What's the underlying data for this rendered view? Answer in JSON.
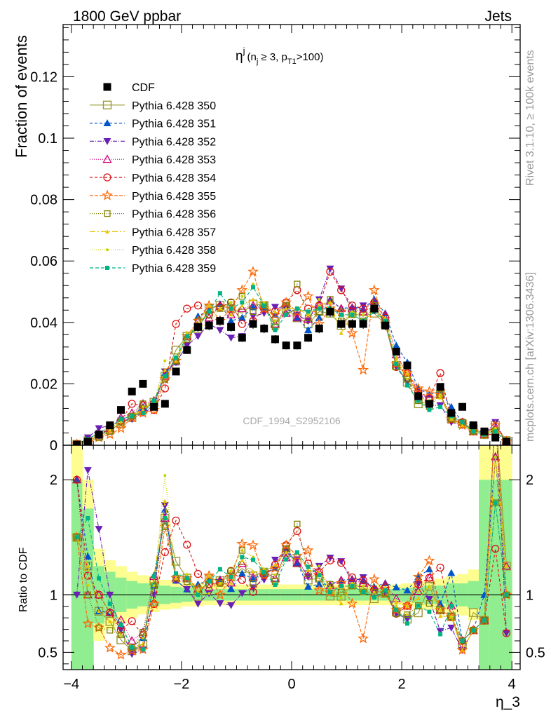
{
  "header": {
    "left": "1800 GeV ppbar",
    "right": "Jets"
  },
  "side_labels": {
    "rivet": "Rivet 3.1.10, ≥ 100k events",
    "mcplots": "mcplots.cern.ch [arXiv:1306.3436]"
  },
  "watermark": "CDF_1994_S2952106",
  "colors": {
    "data": "#000000",
    "band_inner": "#90ee90",
    "band_outer": "#fefe90",
    "reference_line": "#000000"
  },
  "chart_data": [
    {
      "type": "scatter",
      "title": "",
      "plot_label": {
        "base": "η",
        "sup": "j",
        "cond": "(n",
        "cond_sub": "j",
        "cond_mid": " ≥ 3, p",
        "cond_sub2": "T1",
        "cond_end": ">100)"
      },
      "ylabel": "Fraction of events",
      "xlabel": "",
      "xlim": [
        -4.15,
        4.15
      ],
      "ylim": [
        0,
        0.137
      ],
      "yticks": [
        0,
        0.02,
        0.04,
        0.06,
        0.08,
        0.1,
        0.12
      ],
      "ytick_labels": [
        "0",
        "0.02",
        "0.04",
        "0.06",
        "0.08",
        "0.1",
        "0.12"
      ],
      "legend_position": "top-left",
      "x": [
        -3.9,
        -3.7,
        -3.5,
        -3.3,
        -3.1,
        -2.9,
        -2.7,
        -2.5,
        -2.3,
        -2.1,
        -1.9,
        -1.7,
        -1.5,
        -1.3,
        -1.1,
        -0.9,
        -0.7,
        -0.5,
        -0.3,
        -0.1,
        0.1,
        0.3,
        0.5,
        0.7,
        0.9,
        1.1,
        1.3,
        1.5,
        1.7,
        1.9,
        2.1,
        2.3,
        2.5,
        2.7,
        2.9,
        3.1,
        3.3,
        3.5,
        3.7,
        3.9
      ],
      "data_series": {
        "name": "CDF",
        "values": [
          0.0002,
          0.0012,
          0.0035,
          0.0065,
          0.0115,
          0.0175,
          0.02,
          0.0125,
          0.0135,
          0.024,
          0.031,
          0.0385,
          0.039,
          0.0405,
          0.0385,
          0.035,
          0.0395,
          0.038,
          0.0345,
          0.0325,
          0.0325,
          0.035,
          0.038,
          0.0435,
          0.0395,
          0.0395,
          0.0395,
          0.0445,
          0.039,
          0.0305,
          0.026,
          0.016,
          0.0135,
          0.019,
          0.0105,
          0.0125,
          0.0065,
          0.0045,
          0.0025,
          0.0012
        ]
      },
      "series": [
        {
          "name": "Pythia 6.428 350",
          "color": "#999933",
          "marker": "square-open",
          "dash": "",
          "values": [
            0.0003,
            0.0015,
            0.003,
            0.005,
            0.007,
            0.009,
            0.0115,
            0.014,
            0.0225,
            0.031,
            0.0355,
            0.038,
            0.0445,
            0.0455,
            0.0445,
            0.043,
            0.046,
            0.0455,
            0.0395,
            0.0445,
            0.0415,
            0.0395,
            0.0435,
            0.043,
            0.039,
            0.043,
            0.042,
            0.043,
            0.0395,
            0.026,
            0.0205,
            0.0135,
            0.0145,
            0.0165,
            0.0085,
            0.007,
            0.0055,
            0.0035,
            0.0065,
            0.0015
          ]
        },
        {
          "name": "Pythia 6.428 351",
          "color": "#0055cc",
          "marker": "triangle-up",
          "dash": "4,3",
          "values": [
            0.0004,
            0.0016,
            0.003,
            0.0055,
            0.0085,
            0.0095,
            0.0125,
            0.0135,
            0.0235,
            0.027,
            0.0325,
            0.042,
            0.044,
            0.046,
            0.0405,
            0.0415,
            0.045,
            0.045,
            0.0425,
            0.0455,
            0.0415,
            0.0375,
            0.0415,
            0.0475,
            0.0445,
            0.045,
            0.0445,
            0.0475,
            0.043,
            0.0325,
            0.027,
            0.0185,
            0.0165,
            0.0175,
            0.0125,
            0.0075,
            0.0045,
            0.0045,
            0.0055,
            0.0012
          ]
        },
        {
          "name": "Pythia 6.428 352",
          "color": "#6a1fb5",
          "marker": "triangle-down",
          "dash": "6,2,1,2",
          "values": [
            0.0002,
            0.0025,
            0.0055,
            0.0065,
            0.008,
            0.0085,
            0.0105,
            0.0125,
            0.024,
            0.027,
            0.0325,
            0.0355,
            0.0395,
            0.0375,
            0.035,
            0.0355,
            0.042,
            0.043,
            0.045,
            0.0445,
            0.0425,
            0.0405,
            0.0475,
            0.0575,
            0.051,
            0.044,
            0.0455,
            0.046,
            0.04,
            0.0255,
            0.0205,
            0.0175,
            0.013,
            0.013,
            0.0075,
            0.0065,
            0.0045,
            0.0035,
            0.0075,
            0.0008
          ]
        },
        {
          "name": "Pythia 6.428 353",
          "color": "#cc0077",
          "marker": "triangle-open",
          "dash": "1,2",
          "values": [
            0.0004,
            0.0012,
            0.0035,
            0.0055,
            0.009,
            0.0105,
            0.0135,
            0.0145,
            0.0225,
            0.0275,
            0.0355,
            0.0405,
            0.0415,
            0.0455,
            0.0425,
            0.0445,
            0.0455,
            0.0455,
            0.0395,
            0.043,
            0.0415,
            0.041,
            0.0455,
            0.047,
            0.0445,
            0.0445,
            0.0435,
            0.0455,
            0.0425,
            0.0295,
            0.0235,
            0.0165,
            0.0155,
            0.0165,
            0.0095,
            0.0075,
            0.0045,
            0.0035,
            0.0055,
            0.0015
          ]
        },
        {
          "name": "Pythia 6.428 354",
          "color": "#dd1111",
          "marker": "circle-open",
          "dash": "4,3",
          "values": [
            0.0004,
            0.0014,
            0.0035,
            0.0055,
            0.008,
            0.0135,
            0.013,
            0.0115,
            0.0185,
            0.0395,
            0.0445,
            0.0455,
            0.0425,
            0.045,
            0.0465,
            0.0395,
            0.0405,
            0.0445,
            0.0435,
            0.0465,
            0.0505,
            0.0445,
            0.0455,
            0.0565,
            0.0505,
            0.0455,
            0.0445,
            0.0465,
            0.0415,
            0.0255,
            0.0235,
            0.0175,
            0.0155,
            0.0235,
            0.0085,
            0.0075,
            0.0045,
            0.0035,
            0.0035,
            0.0008
          ]
        },
        {
          "name": "Pythia 6.428 355",
          "color": "#ff6600",
          "marker": "star-open",
          "dash": "5,2",
          "values": [
            0.0003,
            0.0009,
            0.0025,
            0.0035,
            0.0055,
            0.009,
            0.0105,
            0.0115,
            0.0215,
            0.0275,
            0.0355,
            0.0405,
            0.0455,
            0.0405,
            0.0445,
            0.0505,
            0.0565,
            0.0445,
            0.0425,
            0.0465,
            0.0435,
            0.0485,
            0.0395,
            0.0445,
            0.0435,
            0.0365,
            0.0245,
            0.0505,
            0.0395,
            0.0265,
            0.0235,
            0.0185,
            0.0175,
            0.0165,
            0.0085,
            0.0065,
            0.0045,
            0.0035,
            0.0065,
            0.0012
          ]
        },
        {
          "name": "Pythia 6.428 356",
          "color": "#7f7f00",
          "marker": "square-open-small",
          "dash": "1,2",
          "values": [
            0.0003,
            0.0012,
            0.0025,
            0.0045,
            0.0075,
            0.0095,
            0.0135,
            0.0135,
            0.0215,
            0.0275,
            0.0345,
            0.0405,
            0.0425,
            0.0445,
            0.0465,
            0.0485,
            0.0435,
            0.0455,
            0.0385,
            0.0455,
            0.0525,
            0.0415,
            0.0435,
            0.0475,
            0.0405,
            0.0425,
            0.0405,
            0.0455,
            0.0395,
            0.0255,
            0.0215,
            0.0145,
            0.0125,
            0.0165,
            0.0085,
            0.0075,
            0.0045,
            0.0035,
            0.0045,
            0.0012
          ]
        },
        {
          "name": "Pythia 6.428 357",
          "color": "#e6c200",
          "marker": "tri-small",
          "dash": "8,3,2,3",
          "values": [
            0.0003,
            0.0015,
            0.003,
            0.005,
            0.0085,
            0.0095,
            0.0115,
            0.0145,
            0.0245,
            0.0275,
            0.0355,
            0.0395,
            0.0455,
            0.0445,
            0.0425,
            0.0455,
            0.0475,
            0.0455,
            0.0435,
            0.0445,
            0.0445,
            0.0425,
            0.0455,
            0.0465,
            0.0365,
            0.0425,
            0.0405,
            0.0435,
            0.0415,
            0.0285,
            0.0235,
            0.0155,
            0.0145,
            0.0155,
            0.0085,
            0.0065,
            0.0045,
            0.0035,
            0.0055,
            0.0015
          ]
        },
        {
          "name": "Pythia 6.428 358",
          "color": "#c8d400",
          "marker": "dot-small",
          "dash": "1,2",
          "values": [
            0.0003,
            0.0013,
            0.0035,
            0.0055,
            0.0075,
            0.0095,
            0.0125,
            0.0135,
            0.0275,
            0.0285,
            0.0365,
            0.0385,
            0.0395,
            0.0445,
            0.0465,
            0.0485,
            0.0525,
            0.0465,
            0.0405,
            0.0425,
            0.0445,
            0.0435,
            0.0475,
            0.0445,
            0.0385,
            0.0435,
            0.0425,
            0.0455,
            0.0405,
            0.0275,
            0.0215,
            0.0165,
            0.0145,
            0.0165,
            0.0085,
            0.0075,
            0.0045,
            0.0035,
            0.0055,
            0.0012
          ]
        },
        {
          "name": "Pythia 6.428 359",
          "color": "#00b386",
          "marker": "square-small",
          "dash": "5,3",
          "values": [
            0.0003,
            0.002,
            0.004,
            0.006,
            0.0085,
            0.0095,
            0.0105,
            0.0145,
            0.0225,
            0.0285,
            0.0355,
            0.0385,
            0.0435,
            0.0495,
            0.0445,
            0.0465,
            0.0515,
            0.0455,
            0.0375,
            0.0425,
            0.0445,
            0.0435,
            0.0445,
            0.0445,
            0.0425,
            0.0425,
            0.0405,
            0.0435,
            0.0405,
            0.0265,
            0.0195,
            0.0145,
            0.0115,
            0.0125,
            0.0095,
            0.0075,
            0.0045,
            0.0035,
            0.0045,
            0.0012
          ]
        }
      ]
    },
    {
      "type": "line",
      "title": "",
      "ylabel": "Ratio to CDF",
      "xlabel": "η_3",
      "xlim": [
        -4.15,
        4.15
      ],
      "ylim": [
        0.35,
        2.3
      ],
      "yticks": [
        0.5,
        1,
        2
      ],
      "ytick_labels": [
        "0.5",
        "1",
        "2"
      ],
      "xticks": [
        -4,
        -2,
        0,
        2,
        4
      ],
      "xtick_labels": [
        "−4",
        "−2",
        "0",
        "2",
        "4"
      ],
      "band_inner_halfwidth": [
        1.0,
        0.75,
        0.25,
        0.2,
        0.15,
        0.12,
        0.1,
        0.1,
        0.08,
        0.07,
        0.06,
        0.05,
        0.05,
        0.05,
        0.05,
        0.05,
        0.05,
        0.05,
        0.05,
        0.05,
        0.05,
        0.05,
        0.05,
        0.05,
        0.05,
        0.05,
        0.05,
        0.05,
        0.05,
        0.05,
        0.06,
        0.07,
        0.08,
        0.08,
        0.1,
        0.1,
        0.12,
        1.0,
        1.0,
        1.0
      ],
      "band_outer_halfwidth": [
        1.3,
        1.0,
        0.4,
        0.3,
        0.25,
        0.2,
        0.17,
        0.15,
        0.13,
        0.12,
        0.1,
        0.1,
        0.09,
        0.09,
        0.09,
        0.09,
        0.09,
        0.09,
        0.09,
        0.09,
        0.09,
        0.09,
        0.09,
        0.09,
        0.09,
        0.09,
        0.09,
        0.09,
        0.09,
        0.09,
        0.1,
        0.12,
        0.13,
        0.14,
        0.16,
        0.18,
        0.22,
        1.3,
        1.3,
        1.3
      ]
    }
  ]
}
